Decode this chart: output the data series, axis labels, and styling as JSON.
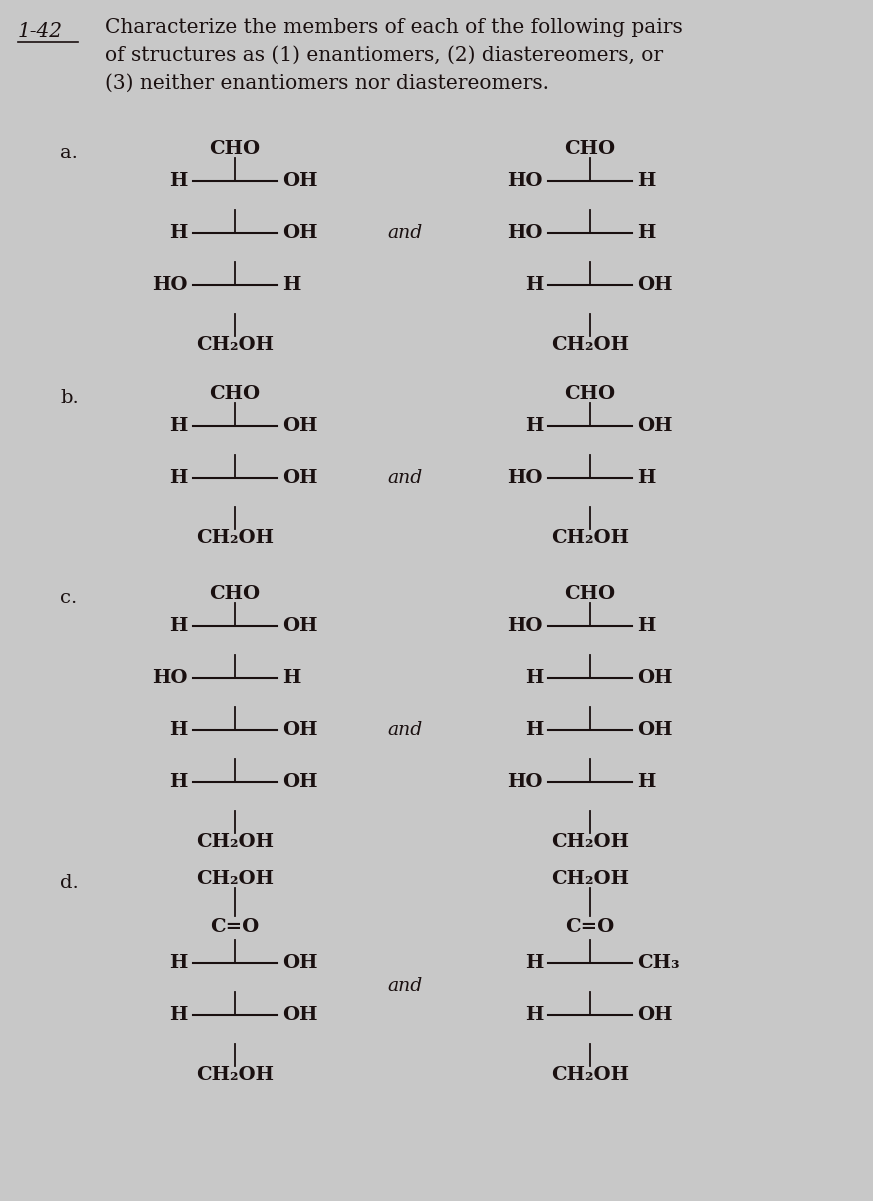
{
  "title_num": "1-42",
  "title_text": "Characterize the members of each of the following pairs\nof structures as (1) enantiomers, (2) diastereomers, or\n(3) neither enantiomers nor diastereomers.",
  "bg_color": "#c8c8c8",
  "text_color": "#1a1010",
  "font_size": 14.5,
  "label_font_size": 14,
  "structure_font_size": 14,
  "sections": [
    {
      "label": "a.",
      "left": {
        "top": "CHO",
        "rows": [
          {
            "left": "H",
            "right": "OH"
          },
          {
            "left": "H",
            "right": "OH"
          },
          {
            "left": "HO",
            "right": "H"
          }
        ],
        "bottom": "CH₂OH"
      },
      "right": {
        "top": "CHO",
        "rows": [
          {
            "left": "HO",
            "right": "H"
          },
          {
            "left": "HO",
            "right": "H"
          },
          {
            "left": "H",
            "right": "OH"
          }
        ],
        "bottom": "CH₂OH"
      },
      "and_row": 1
    },
    {
      "label": "b.",
      "left": {
        "top": "CHO",
        "rows": [
          {
            "left": "H",
            "right": "OH"
          },
          {
            "left": "H",
            "right": "OH"
          }
        ],
        "bottom": "CH₂OH"
      },
      "right": {
        "top": "CHO",
        "rows": [
          {
            "left": "H",
            "right": "OH"
          },
          {
            "left": "HO",
            "right": "H"
          }
        ],
        "bottom": "CH₂OH"
      },
      "and_row": 1
    },
    {
      "label": "c.",
      "left": {
        "top": "CHO",
        "rows": [
          {
            "left": "H",
            "right": "OH"
          },
          {
            "left": "HO",
            "right": "H"
          },
          {
            "left": "H",
            "right": "OH"
          },
          {
            "left": "H",
            "right": "OH"
          }
        ],
        "bottom": "CH₂OH"
      },
      "right": {
        "top": "CHO",
        "rows": [
          {
            "left": "HO",
            "right": "H"
          },
          {
            "left": "H",
            "right": "OH"
          },
          {
            "left": "H",
            "right": "OH"
          },
          {
            "left": "HO",
            "right": "H"
          }
        ],
        "bottom": "CH₂OH"
      },
      "and_row": 2
    },
    {
      "label": "d.",
      "left": {
        "top": "CH₂OH",
        "mid_double": "C=O",
        "rows": [
          {
            "left": "H",
            "right": "OH"
          },
          {
            "left": "H",
            "right": "OH"
          }
        ],
        "bottom": "CH₂OH"
      },
      "right": {
        "top": "CH₂OH",
        "mid_double": "C=O",
        "rows": [
          {
            "left": "H",
            "right": "CH₃"
          },
          {
            "left": "H",
            "right": "OH"
          }
        ],
        "bottom": "CH₂OH"
      },
      "and_row": 1
    }
  ]
}
